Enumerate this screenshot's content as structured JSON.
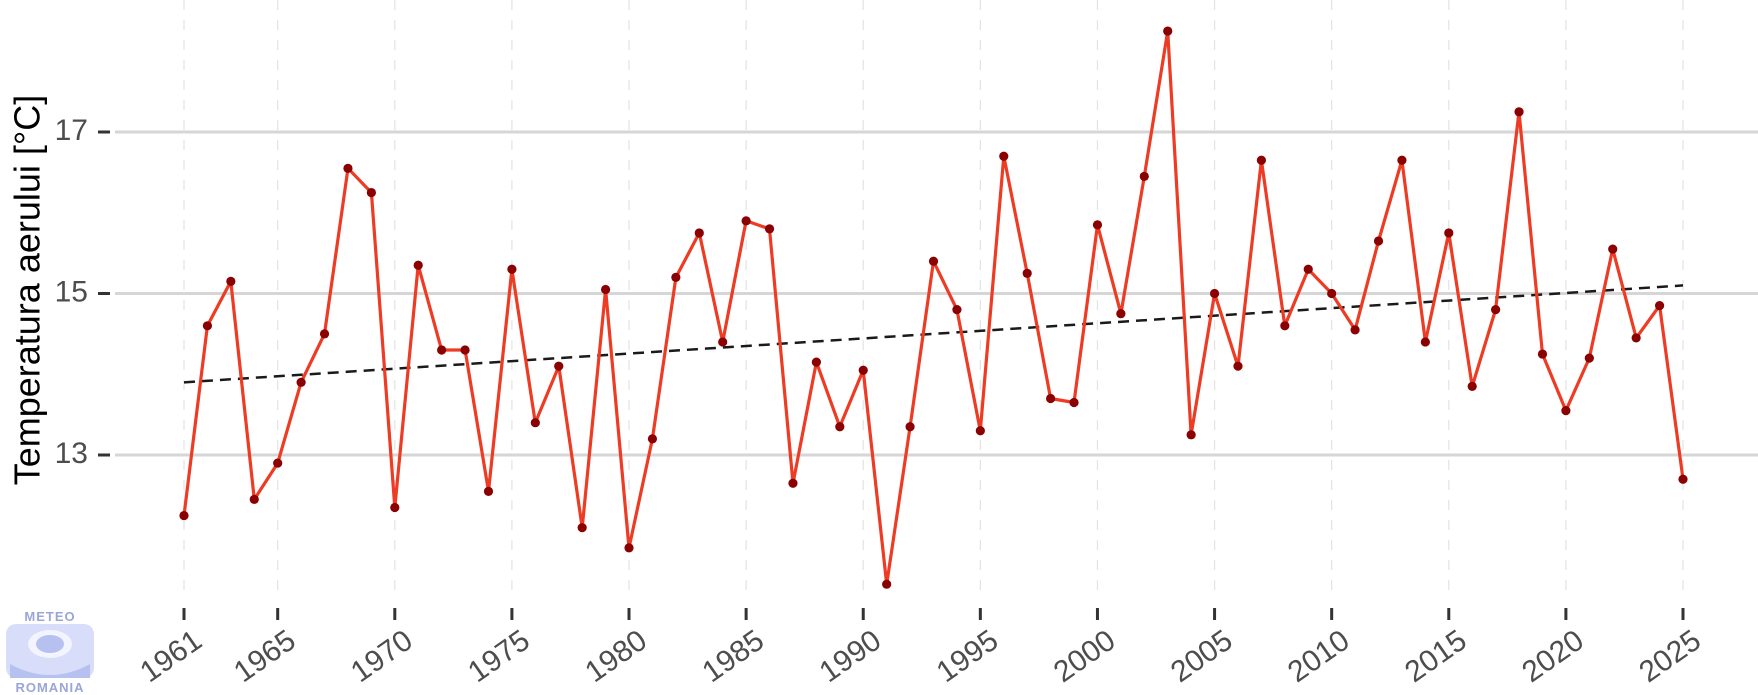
{
  "chart_data": {
    "type": "line",
    "title": "",
    "xlabel": "",
    "ylabel": "Temperatura aerului [°C]",
    "xlim": [
      1961,
      2025
    ],
    "ylim": [
      11.5,
      18.4
    ],
    "x_ticks": [
      1961,
      1965,
      1970,
      1975,
      1980,
      1985,
      1990,
      1995,
      2000,
      2005,
      2010,
      2015,
      2020,
      2025
    ],
    "y_ticks": [
      13,
      15,
      17
    ],
    "grid": {
      "major_y": true,
      "minor_x_dashed": true
    },
    "series": [
      {
        "values_x": [
          1961,
          1962,
          1963,
          1964,
          1965,
          1966,
          1967,
          1968,
          1969,
          1970,
          1971,
          1972,
          1973,
          1974,
          1975,
          1976,
          1977,
          1978,
          1979,
          1980,
          1981,
          1982,
          1983,
          1984,
          1985,
          1986,
          1987,
          1988,
          1989,
          1990,
          1991,
          1992,
          1993,
          1994,
          1995,
          1996,
          1997,
          1998,
          1999,
          2000,
          2001,
          2002,
          2003,
          2004,
          2005,
          2006,
          2007,
          2008,
          2009,
          2010,
          2011,
          2012,
          2013,
          2014,
          2015,
          2016,
          2017,
          2018,
          2019,
          2020,
          2021,
          2022,
          2023,
          2024,
          2025
        ],
        "values_y": [
          12.25,
          14.6,
          15.15,
          12.45,
          12.9,
          13.9,
          14.5,
          16.55,
          16.25,
          12.35,
          15.35,
          14.3,
          14.3,
          12.55,
          15.3,
          13.4,
          14.1,
          12.1,
          15.05,
          11.85,
          13.2,
          15.2,
          15.75,
          14.4,
          15.9,
          15.8,
          12.65,
          14.15,
          13.35,
          14.05,
          11.4,
          13.35,
          15.4,
          14.8,
          13.3,
          16.7,
          15.25,
          13.7,
          13.65,
          15.85,
          14.75,
          16.45,
          18.25,
          13.25,
          15.0,
          14.1,
          16.65,
          14.6,
          15.3,
          15.0,
          14.55,
          15.65,
          16.65,
          14.4,
          15.75,
          13.85,
          14.8,
          17.25,
          14.25,
          13.55,
          14.2,
          15.55,
          14.45,
          14.85,
          12.7
        ],
        "color": "#ee3b24",
        "marker_color": "#8b0000"
      }
    ],
    "trend": {
      "start": [
        1961,
        13.9
      ],
      "end": [
        2025,
        15.1
      ],
      "style": "dashed",
      "color": "#1a1a1a"
    }
  },
  "logo": {
    "top_text": "METEO",
    "bottom_text": "ROMANIA"
  }
}
